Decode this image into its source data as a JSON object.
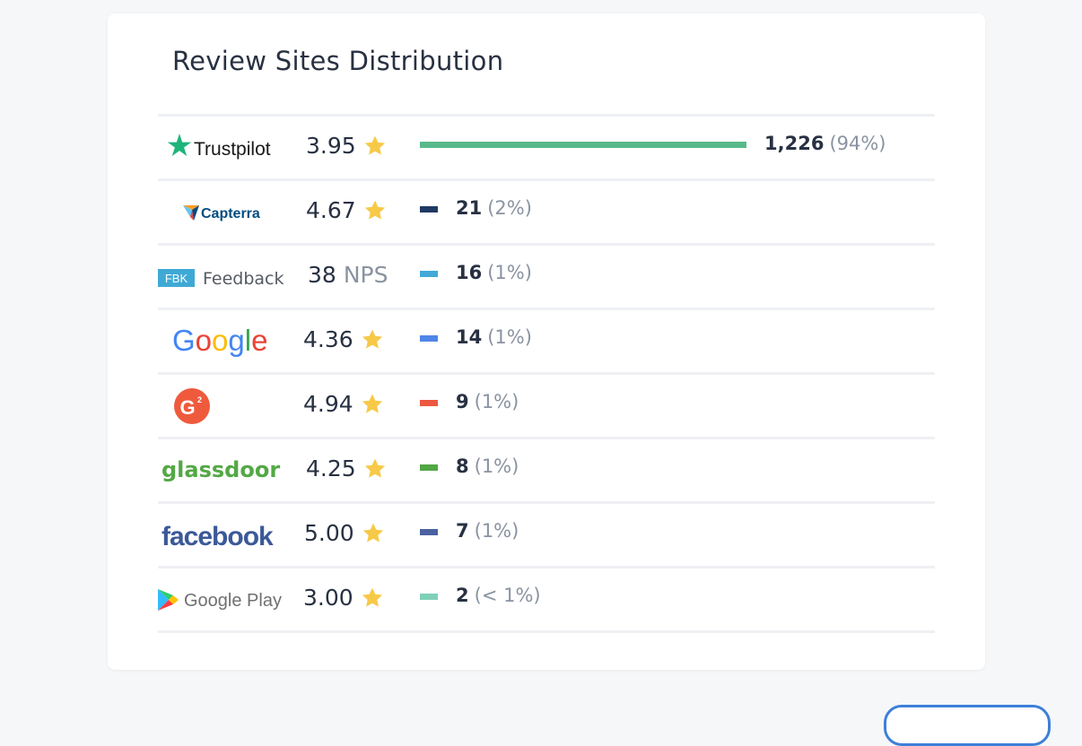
{
  "card": {
    "title": "Review Sites Distribution"
  },
  "rows": [
    {
      "site": "Trustpilot",
      "rating": "3.95",
      "unit": "",
      "count": "1,226",
      "pct": "(94%)",
      "share": 94,
      "bar_color": "#57b98a"
    },
    {
      "site": "Capterra",
      "rating": "4.67",
      "unit": "",
      "count": "21",
      "pct": "(2%)",
      "share": 2,
      "bar_color": "#1f3a63"
    },
    {
      "site": "Feedback",
      "badge": "FBK",
      "rating": "38",
      "unit": "NPS",
      "count": "16",
      "pct": "(1%)",
      "share": 1,
      "bar_color": "#43a9d8"
    },
    {
      "site": "Google",
      "rating": "4.36",
      "unit": "",
      "count": "14",
      "pct": "(1%)",
      "share": 1,
      "bar_color": "#4f86e8"
    },
    {
      "site": "G2",
      "rating": "4.94",
      "unit": "",
      "count": "9",
      "pct": "(1%)",
      "share": 1,
      "bar_color": "#ec5840"
    },
    {
      "site": "glassdoor",
      "rating": "4.25",
      "unit": "",
      "count": "8",
      "pct": "(1%)",
      "share": 1,
      "bar_color": "#52a644"
    },
    {
      "site": "facebook",
      "rating": "5.00",
      "unit": "",
      "count": "7",
      "pct": "(1%)",
      "share": 1,
      "bar_color": "#4b62a0"
    },
    {
      "site": "Google Play",
      "rating": "3.00",
      "unit": "",
      "count": "2",
      "pct": "(< 1%)",
      "share": 1,
      "bar_color": "#7fd0b8"
    }
  ],
  "colors": {
    "star": "#f7c948",
    "muted": "#8a93a1",
    "text": "#283142"
  }
}
